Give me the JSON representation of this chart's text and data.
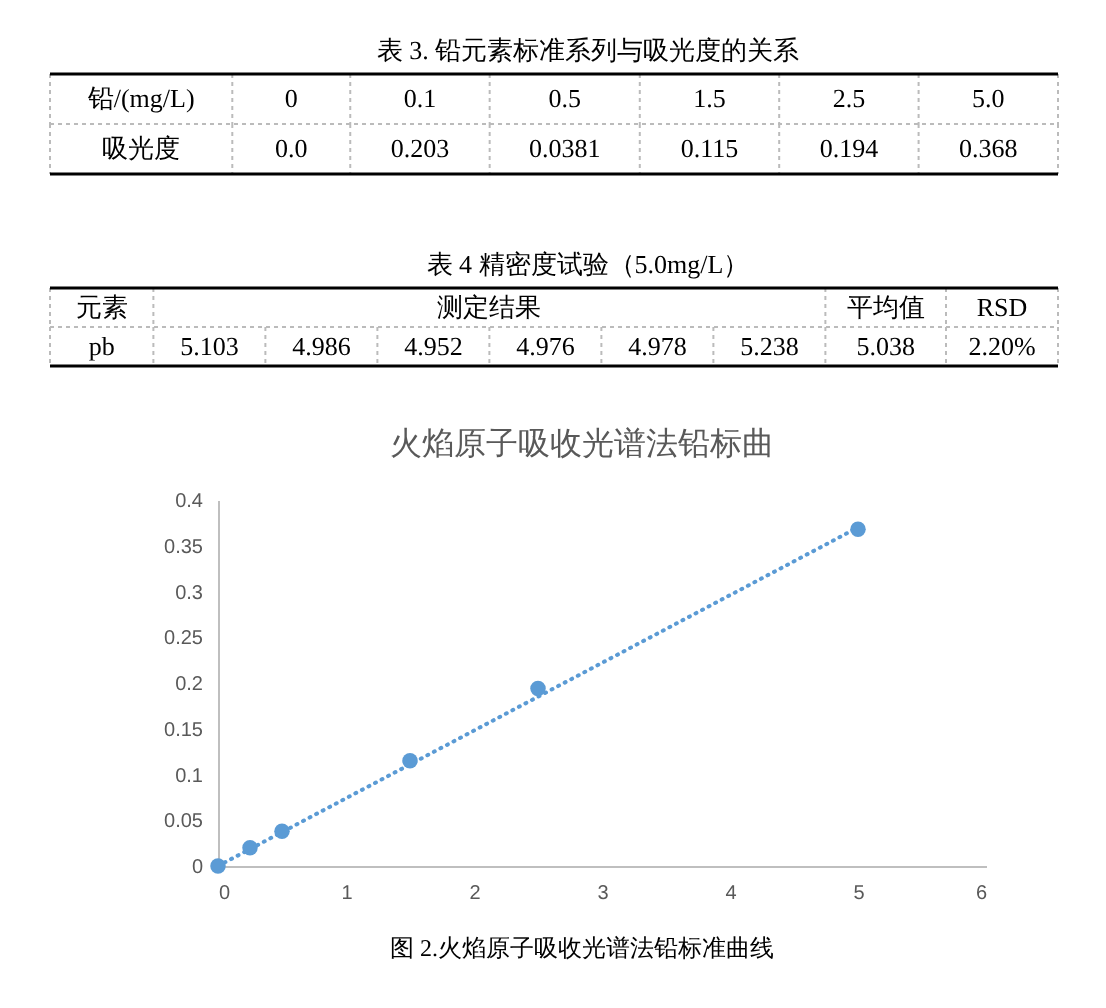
{
  "chart_data": [
    {
      "type": "other",
      "title": "表 3. 铅元素标准系列与吸光度的关系",
      "cell_labels": [
        [
          "铅/(mg/L)",
          "0",
          "0.1",
          "0.5",
          "1.5",
          "2.5",
          "5.0"
        ],
        [
          "吸光度",
          "0.0",
          "0.203",
          "0.0381",
          "0.115",
          "0.194",
          "0.368"
        ]
      ]
    },
    {
      "type": "other",
      "title": "表 4 精密度试验（5.0mg/L）",
      "cell_labels": [
        [
          "元素",
          "测定结果",
          null,
          null,
          null,
          null,
          null,
          "平均值",
          "RSD"
        ],
        [
          "pb",
          "5.103",
          "4.986",
          "4.952",
          "4.976",
          "4.978",
          "5.238",
          "5.038",
          "2.20%"
        ]
      ]
    },
    {
      "type": "scatter",
      "title": "火焰原子吸收光谱法铅标曲",
      "x": [
        0,
        0.25,
        0.5,
        1.5,
        2.5,
        5
      ],
      "series": [
        {
          "type": "line",
          "x": [
            0,
            5
          ],
          "values": [
            0,
            0.37
          ],
          "color": "#5b9bd5",
          "line_style": "dotted"
        },
        {
          "type": "scatter",
          "values": [
            0,
            0.02,
            0.038,
            0.115,
            0.194,
            0.368
          ],
          "color": "#5b9bd5",
          "marker": "circle"
        }
      ],
      "xlim": [
        0,
        6
      ],
      "ylim": [
        0,
        0.4
      ],
      "xticks": [
        0,
        1,
        2,
        3,
        4,
        5,
        6
      ],
      "yticks": [
        0,
        0.05,
        0.1,
        0.15,
        0.2,
        0.25,
        0.3,
        0.35,
        0.4
      ],
      "annotations": [
        "图 2.火焰原子吸收光谱法铅标准曲线"
      ]
    }
  ]
}
